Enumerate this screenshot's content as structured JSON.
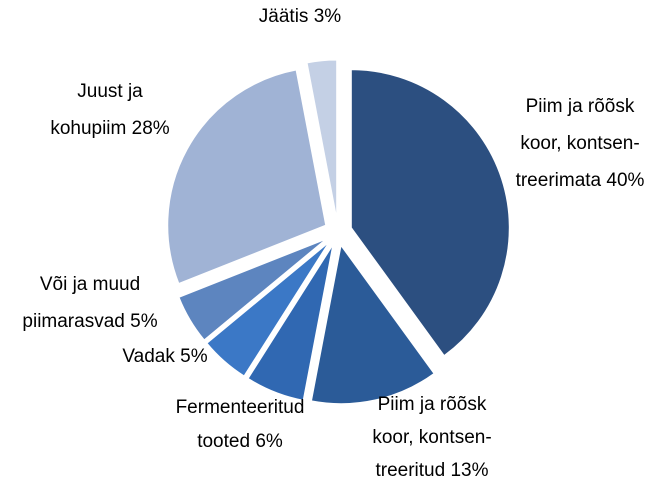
{
  "chart_data": {
    "type": "pie",
    "categories": [
      [
        "Piim ja rõõsk",
        "koor, kontsen-",
        "treerimata"
      ],
      [
        "Piim ja rõõsk",
        "koor, kontsen-",
        "treeritud"
      ],
      [
        "Fermenteeritud",
        "tooted"
      ],
      [
        "Vadak"
      ],
      [
        "Või ja muud",
        "piimarasvad"
      ],
      [
        "Juust ja",
        "kohupiim"
      ],
      [
        "Jäätis"
      ]
    ],
    "values": [
      40,
      13,
      6,
      5,
      5,
      28,
      3
    ],
    "value_labels": [
      "40%",
      "13%",
      "6%",
      "5%",
      "5%",
      "28%",
      "3%"
    ],
    "colors": [
      "#2c4f80",
      "#2b5b98",
      "#3068b2",
      "#3b78c6",
      "#5d85bf",
      "#a0b3d5",
      "#c4d0e5"
    ]
  }
}
